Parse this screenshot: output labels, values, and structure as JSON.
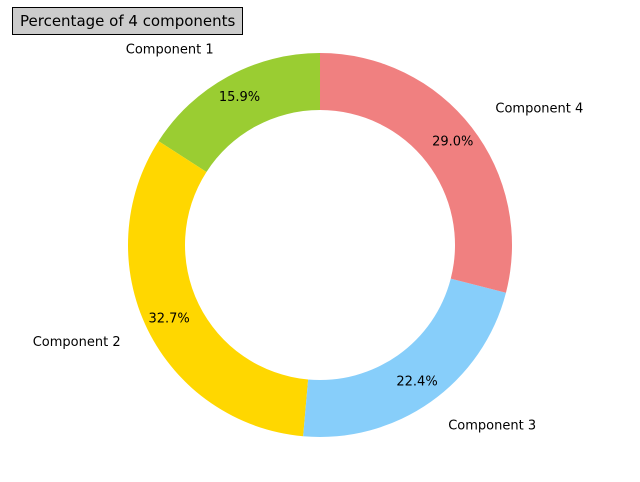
{
  "chart_data": {
    "type": "pie",
    "title": "Percentage of 4 components",
    "donut": true,
    "start_angle_deg": 90,
    "direction": "counterclockwise",
    "slices": [
      {
        "label": "Component 1",
        "value": 15.9,
        "pct_label": "15.9%",
        "color": "#9acd32"
      },
      {
        "label": "Component 2",
        "value": 32.7,
        "pct_label": "32.7%",
        "color": "#ffd700"
      },
      {
        "label": "Component 3",
        "value": 22.4,
        "pct_label": "22.4%",
        "color": "#87cefa"
      },
      {
        "label": "Component 4",
        "value": 29.0,
        "pct_label": "29.0%",
        "color": "#f08080"
      }
    ]
  }
}
